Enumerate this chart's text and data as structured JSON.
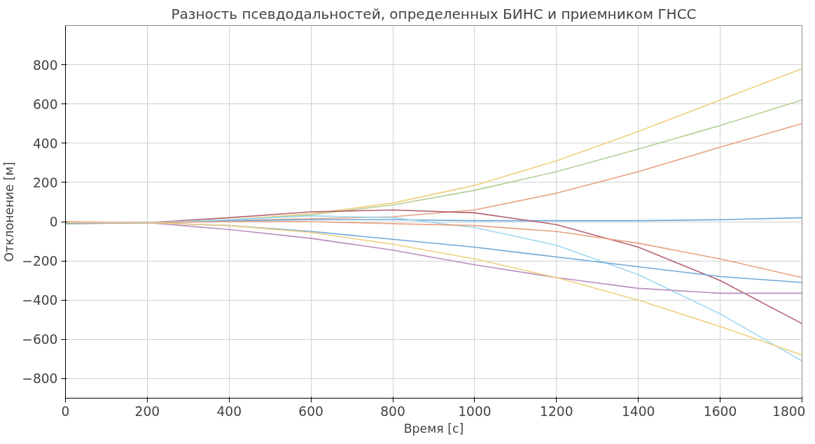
{
  "chart_data": {
    "type": "line",
    "title": "Разность псевдодальностей, определенных БИНС и приемником ГНСС",
    "xlabel": "Время [с]",
    "ylabel": "Отклонение [м]",
    "x": [
      0,
      200,
      400,
      600,
      800,
      1000,
      1200,
      1400,
      1600,
      1800
    ],
    "xlim": [
      0,
      1800
    ],
    "xticks": [
      0,
      200,
      400,
      600,
      800,
      1000,
      1200,
      1400,
      1600,
      1800
    ],
    "ylim": [
      -900,
      1000
    ],
    "yticks": [
      -800,
      -600,
      -400,
      -200,
      0,
      200,
      400,
      600,
      800
    ],
    "grid": true,
    "line_style": "solid",
    "series": [
      {
        "color": "#f0cf7f",
        "values": [
          -10,
          -5,
          10,
          40,
          95,
          185,
          310,
          460,
          620,
          780
        ]
      },
      {
        "color": "#b3cf93",
        "values": [
          -10,
          -5,
          10,
          35,
          85,
          160,
          255,
          370,
          490,
          620
        ]
      },
      {
        "color": "#e8a183",
        "values": [
          -5,
          -5,
          5,
          15,
          25,
          60,
          145,
          255,
          380,
          500
        ]
      },
      {
        "color": "#6fa8d6",
        "values": [
          -5,
          -5,
          5,
          10,
          10,
          5,
          5,
          5,
          10,
          20
        ]
      },
      {
        "color": "#b5626f",
        "values": [
          -5,
          -5,
          20,
          50,
          60,
          45,
          -15,
          -130,
          -300,
          -520
        ]
      },
      {
        "color": "#9dd8f1",
        "values": [
          -5,
          -5,
          10,
          30,
          20,
          -30,
          -120,
          -270,
          -470,
          -710
        ]
      },
      {
        "color": "#e8a183",
        "values": [
          0,
          -5,
          0,
          0,
          -10,
          -20,
          -50,
          -110,
          -190,
          -285
        ]
      },
      {
        "color": "#6fa8d6",
        "values": [
          -10,
          -5,
          -20,
          -50,
          -90,
          -130,
          -180,
          -230,
          -280,
          -310
        ]
      },
      {
        "color": "#b98fbf",
        "values": [
          -5,
          -5,
          -40,
          -85,
          -145,
          -220,
          -285,
          -340,
          -365,
          -365
        ]
      },
      {
        "color": "#f0cf7f",
        "values": [
          -5,
          -5,
          -20,
          -55,
          -115,
          -190,
          -285,
          -400,
          -535,
          -680
        ]
      }
    ]
  }
}
